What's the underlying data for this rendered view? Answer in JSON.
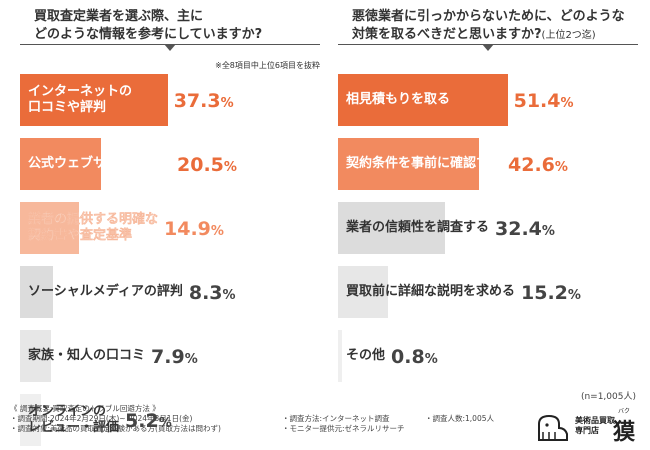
{
  "colors": {
    "dark": "#ea6c3a",
    "mid": "#f28a5f",
    "light": "#f7b89b",
    "gray1": "#dcdcdc",
    "gray2": "#e7e7e7",
    "gray3": "#efefef"
  },
  "chart_data": [
    {
      "type": "bar",
      "title_line1": "買取査定業者を選ぶ際、主に",
      "title_line2": "どのような情報を参考にしていますか?",
      "note": "※全8項目中上位6項目を抜粋",
      "unit": "%",
      "xlim": [
        0,
        50
      ],
      "bars": [
        {
          "line1": "インターネットの",
          "line2": "口コミや評判",
          "int": "37.3",
          "dec": "%",
          "value": 37.3,
          "shade": "dark"
        },
        {
          "line1": "公式ウェブサイトの情報",
          "line2": "",
          "int": "20.5",
          "dec": "%",
          "value": 20.5,
          "shade": "mid"
        },
        {
          "line1": "業者の提供する明確な",
          "line2": "契約書や査定基準",
          "int": "14.9",
          "dec": "%",
          "value": 14.9,
          "shade": "light"
        },
        {
          "line1": "ソーシャルメディアの評判",
          "line2": "",
          "int": "8.3",
          "dec": "%",
          "value": 8.3,
          "shade": "gray1"
        },
        {
          "line1": "家族・知人の口コミ",
          "line2": "",
          "int": "7.9",
          "dec": "%",
          "value": 7.9,
          "shade": "gray2"
        },
        {
          "line1": "オンラインの",
          "line2": "レビュー・評価",
          "int": "5.2",
          "dec": "%",
          "value": 5.2,
          "shade": "gray3"
        }
      ]
    },
    {
      "type": "bar",
      "title_line1": "悪徳業者に引っかからないために、どのような",
      "title_line2": "対策を取るべきだと思いますか?",
      "title_sub": "(上位2つ迄)",
      "unit": "%",
      "xlim": [
        0,
        60
      ],
      "bars": [
        {
          "line1": "相見積もりを取る",
          "line2": "",
          "int": "51.4",
          "dec": "%",
          "value": 51.4,
          "shade": "dark"
        },
        {
          "line1": "契約条件を事前に確認する",
          "line2": "",
          "int": "42.6",
          "dec": "%",
          "value": 42.6,
          "shade": "mid"
        },
        {
          "line1": "業者の信頼性を調査する",
          "line2": "",
          "int": "32.4",
          "dec": "%",
          "value": 32.4,
          "shade": "gray1"
        },
        {
          "line1": "買取前に詳細な説明を求める",
          "line2": "",
          "int": "15.2",
          "dec": "%",
          "value": 15.2,
          "shade": "gray2"
        },
        {
          "line1": "その他",
          "line2": "",
          "int": "0.8",
          "dec": "%",
          "value": 0.8,
          "shade": "gray3"
        }
      ]
    }
  ],
  "sample_size": "(n=1,005人)",
  "footer": {
    "overview": "《 調査概要:買取査定のトラブル回避方法 》",
    "period": "・調査期間:2024年2月29日(木)~ 2024年3月1日(金)",
    "method": "・調査方法:インターネット調査",
    "count": "・調査人数:1,005人",
    "target": "・調査対象:美術品の買取査定経験がある方(買取方法は問わず)",
    "provider": "・モニター提供元:ゼネラルリサーチ"
  },
  "logo": {
    "line1": "美術品買取",
    "line2": "専門店",
    "kanji": "獏",
    "ruby": "バク"
  }
}
